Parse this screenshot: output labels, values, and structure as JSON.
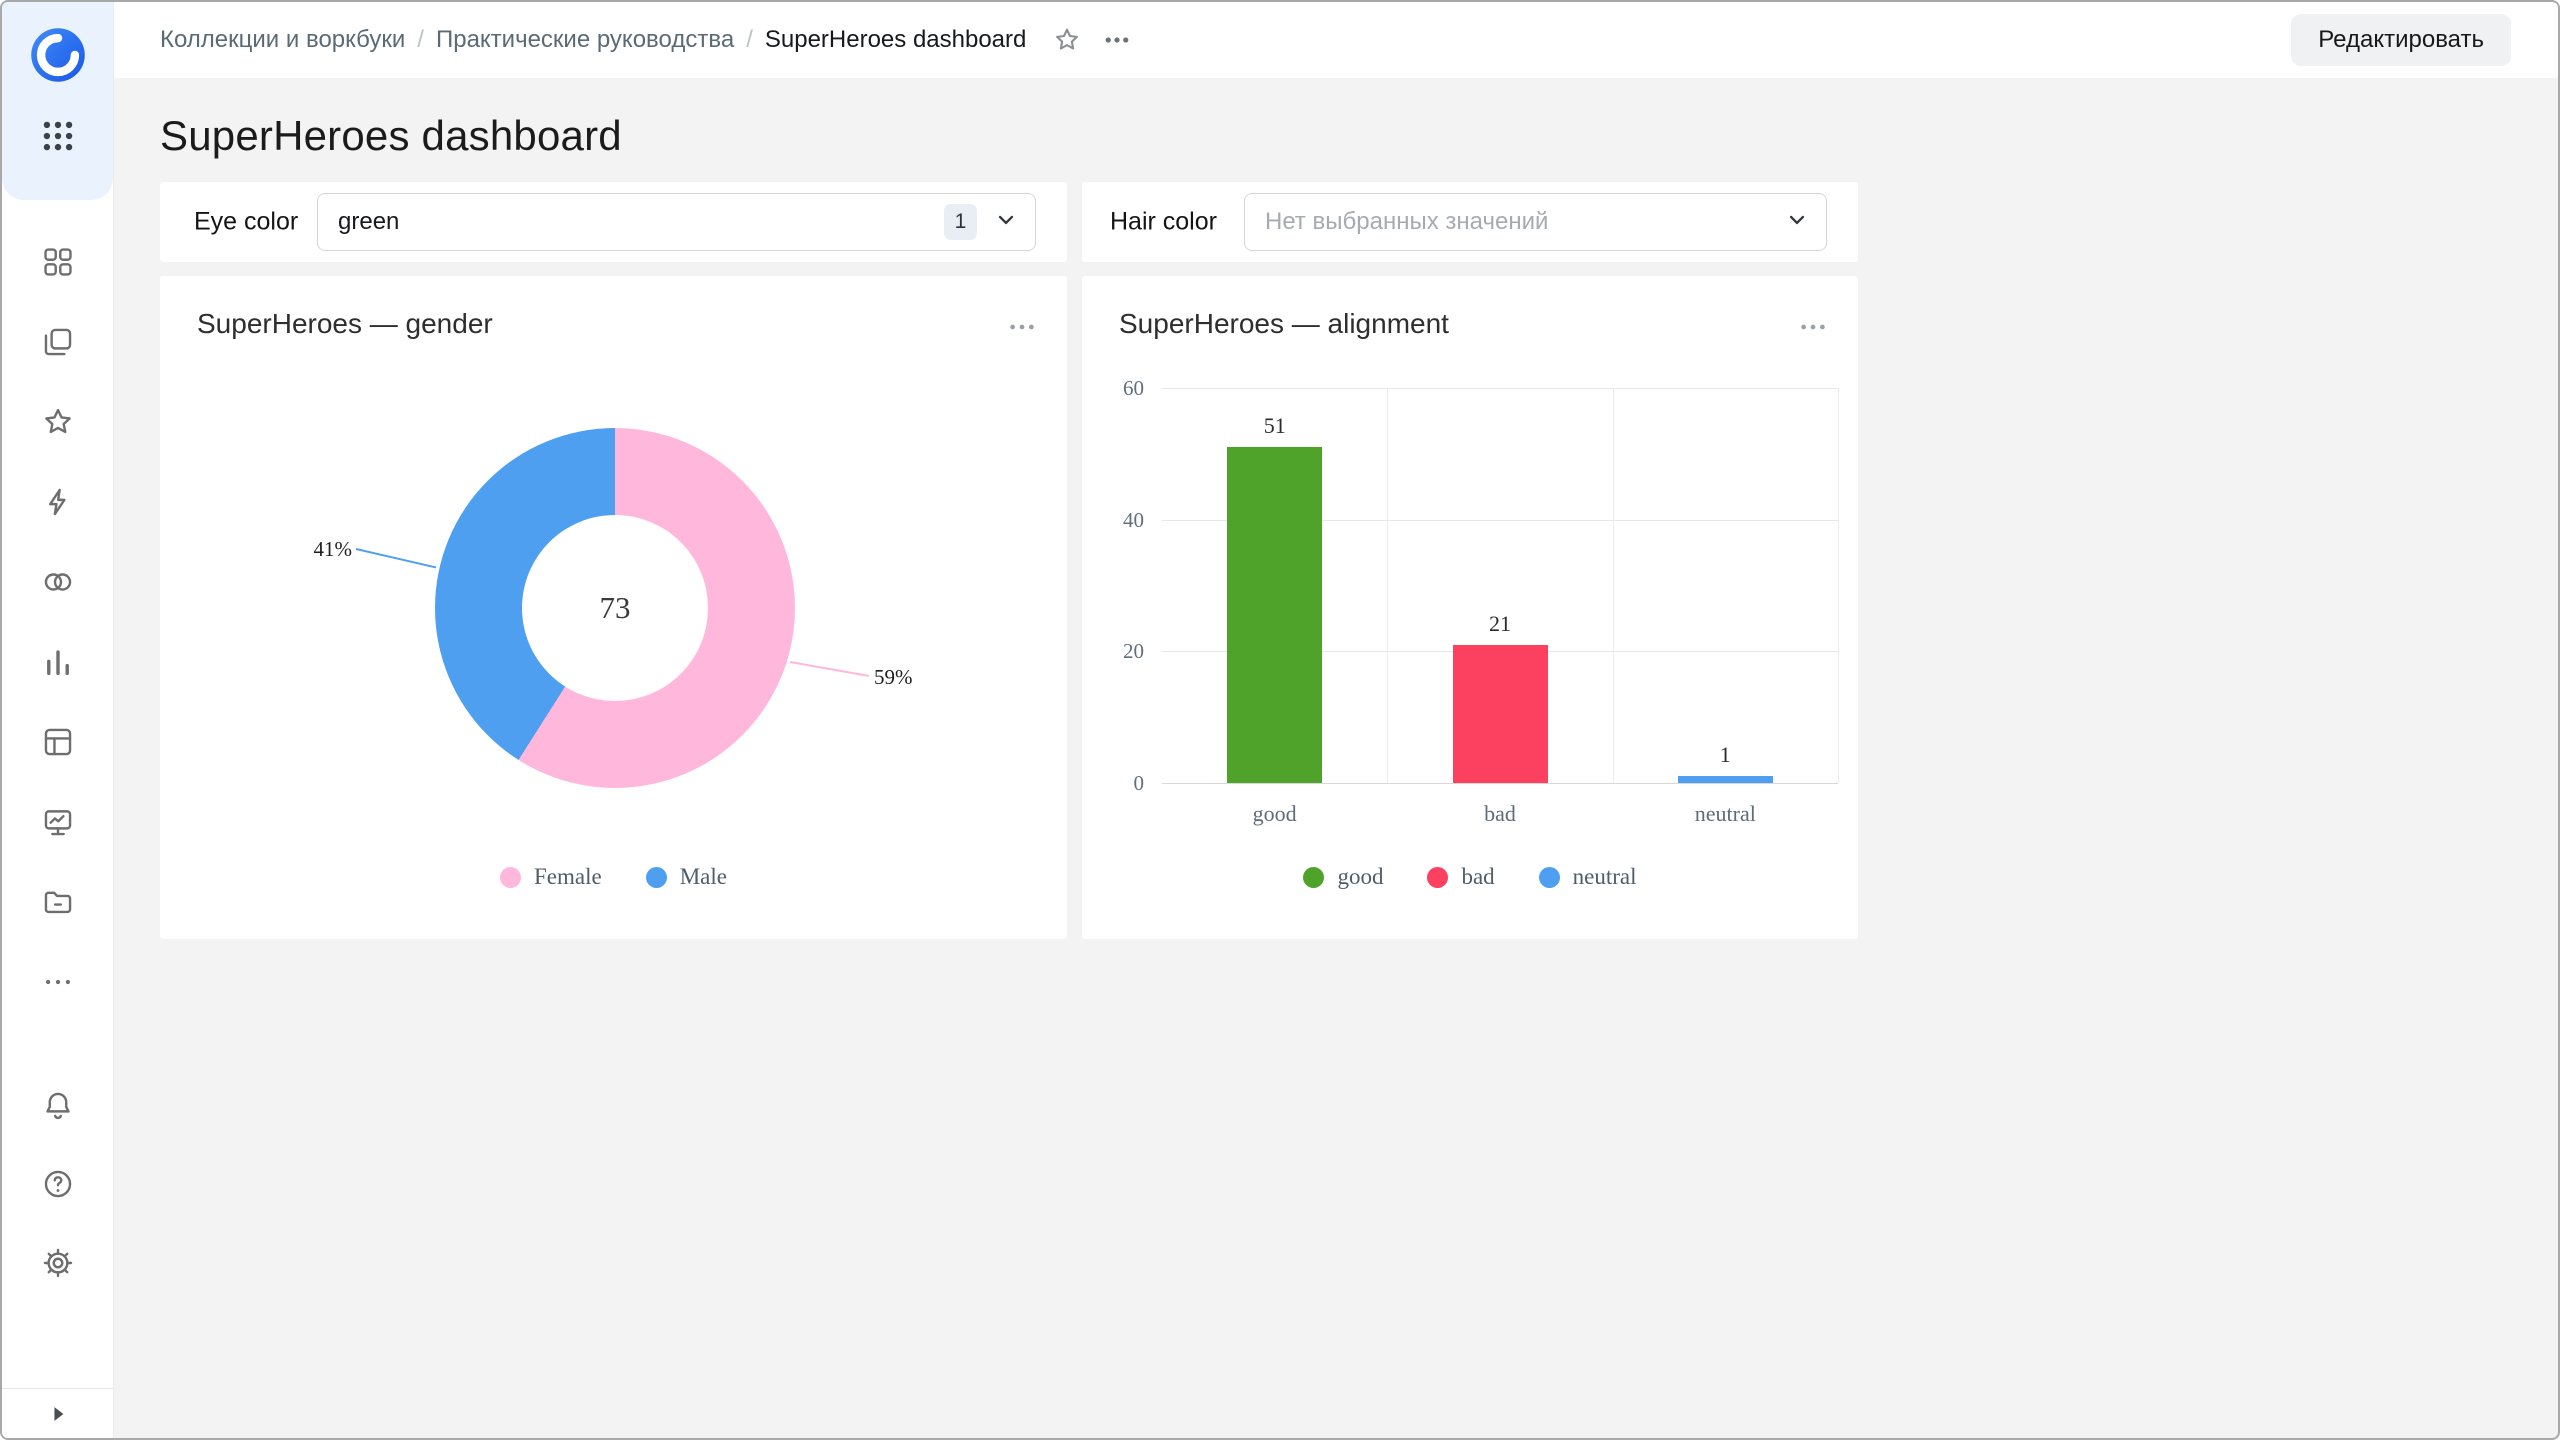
{
  "window": {
    "border_color": "#a8a8a8"
  },
  "sidebar": {
    "logo": "datalens-logo",
    "services_icon": "services-grid-icon",
    "nav_icons": [
      "navigation-icon",
      "workbooks-icon",
      "favorites-icon",
      "ql-charts-icon",
      "connections-icon",
      "charts-icon",
      "datasets-icon",
      "dashboards-icon",
      "storage-icon",
      "more-icon"
    ],
    "footer_icons": [
      "notifications-icon",
      "help-icon",
      "settings-icon"
    ],
    "expand_icon": "expand-sidebar-icon"
  },
  "header": {
    "breadcrumbs": [
      "Коллекции и воркбуки",
      "Практические руководства",
      "SuperHeroes dashboard"
    ],
    "icons": [
      "favorite-star-icon",
      "more-actions-icon"
    ],
    "actions": {
      "edit_button": "Редактировать"
    }
  },
  "page": {
    "title": "SuperHeroes dashboard"
  },
  "filters": [
    {
      "label": "Eye color",
      "value": "green",
      "selected_count": "1",
      "control": "multi-select"
    },
    {
      "label": "Hair color",
      "placeholder": "Нет выбранных значений",
      "control": "multi-select"
    }
  ],
  "chart_data": [
    {
      "type": "pie",
      "subtype": "donut",
      "title": "SuperHeroes — gender",
      "center_total": "73",
      "slices": [
        {
          "name": "Female",
          "percent": 59,
          "color": "#ffb8dc"
        },
        {
          "name": "Male",
          "percent": 41,
          "color": "#4f9ff0"
        }
      ],
      "legend_position": "bottom"
    },
    {
      "type": "bar",
      "title": "SuperHeroes — alignment",
      "categories": [
        "good",
        "bad",
        "neutral"
      ],
      "series": [
        {
          "name": "good",
          "value": 51,
          "color": "#50a32a"
        },
        {
          "name": "bad",
          "value": 21,
          "color": "#fb4060"
        },
        {
          "name": "neutral",
          "value": 1,
          "color": "#4f9ff0"
        }
      ],
      "ylim": [
        0,
        60
      ],
      "yticks": [
        0,
        20,
        40,
        60
      ],
      "grid": true,
      "legend_position": "bottom"
    }
  ]
}
